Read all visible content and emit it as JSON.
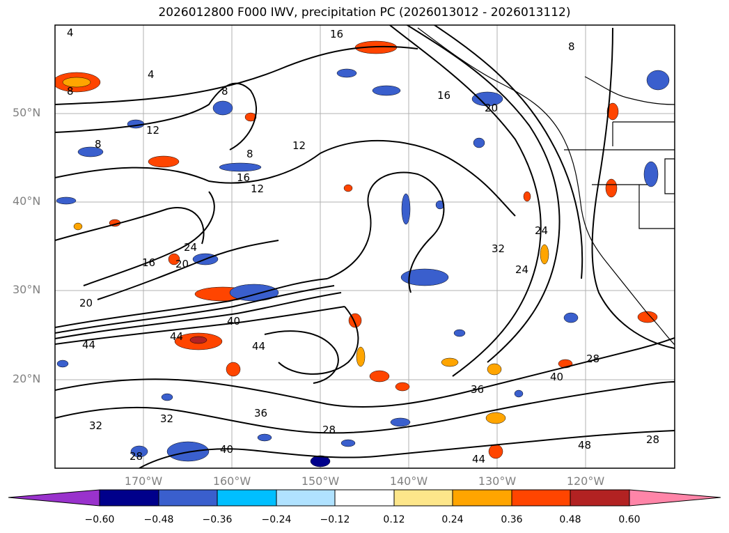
{
  "title": "2026012800 F000 IWV, precipitation PC (2026013012 - 2026013112)",
  "latitude_labels": [
    "50°N",
    "40°N",
    "30°N",
    "20°N"
  ],
  "longitude_labels": [
    "170°W",
    "160°W",
    "150°W",
    "140°W",
    "130°W",
    "120°W"
  ],
  "contour_labels": [
    "4",
    "4",
    "8",
    "8",
    "8",
    "8",
    "8",
    "12",
    "12",
    "12",
    "16",
    "16",
    "16",
    "16",
    "20",
    "20",
    "20",
    "24",
    "24",
    "24",
    "28",
    "28",
    "28",
    "28",
    "32",
    "32",
    "32",
    "36",
    "36",
    "40",
    "40",
    "40",
    "44",
    "44",
    "44",
    "44",
    "48"
  ],
  "colorbar": {
    "ticks": [
      "−0.60",
      "−0.48",
      "−0.36",
      "−0.24",
      "−0.12",
      "0.12",
      "0.24",
      "0.36",
      "0.48",
      "0.60"
    ],
    "colors": [
      "#9932cc",
      "#00008b",
      "#3a5fcd",
      "#00bfff",
      "#b0e2ff",
      "#ffffff",
      "#fde68a",
      "#ffa500",
      "#ff4500",
      "#b22222",
      "#ff85a8"
    ]
  }
}
